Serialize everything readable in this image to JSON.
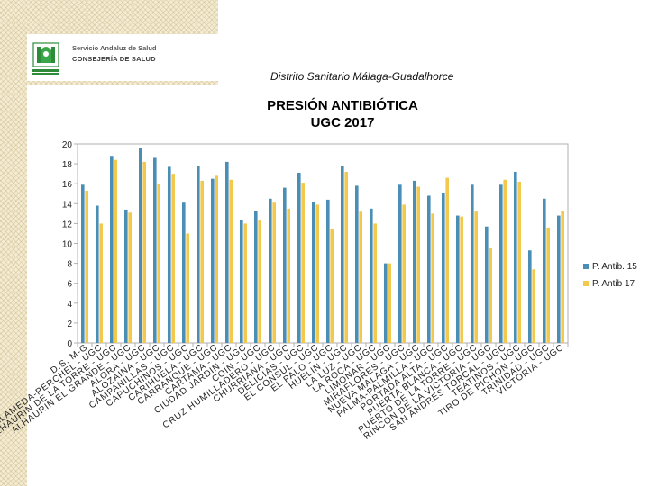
{
  "header": {
    "org_line1": "Servicio Andaluz de Salud",
    "org_line2": "CONSEJERÍA DE SALUD",
    "subtitle": "Distrito Sanitario Málaga-Guadalhorce"
  },
  "colors": {
    "series1": "#4a8db5",
    "series2": "#f2c94c",
    "axis": "#b0b0b0",
    "text": "#222222"
  },
  "chart_data": {
    "type": "bar",
    "title": "PRESIÓN ANTIBIÓTICA UGC 2017",
    "title_lines": [
      "PRESIÓN ANTIBIÓTICA",
      "UGC  2017"
    ],
    "xlabel": "",
    "ylabel": "",
    "ylim": [
      0,
      20
    ],
    "yticks": [
      0,
      2,
      4,
      6,
      8,
      10,
      12,
      14,
      16,
      18,
      20
    ],
    "grid": false,
    "legend_position": "right",
    "categories": [
      "D.S. M-G",
      "ALAMEDA-PERCHEL - UGC",
      "ALHAURIN DE LA TORRE - UGC",
      "ALHAURIN EL GRANDE - UGC",
      "ALORA - UGC",
      "ALOZAINA - UGC",
      "CAMPANILLAS - UGC",
      "CAPUCHINOS - UGC",
      "CARIHUELA - UGC",
      "CARRANQUE - UGC",
      "CARTAMA - UGC",
      "CIUDAD JARDIN - UGC",
      "COIN - UGC",
      "CRUZ HUMILLADERO - UGC",
      "CHURRIANA - UGC",
      "DELICIAS - UGC",
      "EL CONSUL - UGC",
      "EL PALO - UGC",
      "HUELIN - UGC",
      "LA LUZ - UGC",
      "LA ROCA - UGC",
      "LIMONAR - UGC",
      "MIRAFLORES - UGC",
      "NUEVA MALAGA - UGC",
      "PALMA-PALMILLA - UGC",
      "PORTADA ALTA - UGC",
      "PUERTA BLANCA - UGC",
      "PUERTO DE LA TORRE - UGC",
      "RINCON DE LA VICTORIA - UGC",
      "SAN ANDRES TORCAL - UGC",
      "TEATINOS - UGC",
      "TIRO DE PICHON - UGC",
      "TRINIDAD - UGC",
      "VICTORIA - UGC"
    ],
    "series": [
      {
        "name": "P. Antib. 15",
        "values": [
          15.9,
          13.8,
          18.8,
          13.4,
          19.6,
          18.6,
          17.7,
          14.1,
          17.8,
          16.5,
          18.2,
          12.4,
          13.3,
          14.5,
          15.6,
          17.1,
          14.2,
          14.4,
          17.8,
          15.8,
          13.5,
          8.0,
          15.9,
          16.3,
          14.8,
          15.1,
          12.8,
          15.9,
          11.7,
          15.9,
          17.2,
          9.3,
          14.5,
          12.8
        ]
      },
      {
        "name": "P. Antib 17",
        "values": [
          15.3,
          12.0,
          18.4,
          13.1,
          18.2,
          16.0,
          17.0,
          11.0,
          16.3,
          16.8,
          16.4,
          12.0,
          12.3,
          14.1,
          13.5,
          16.1,
          13.9,
          11.5,
          17.2,
          13.2,
          12.0,
          8.0,
          13.9,
          15.7,
          13.0,
          16.6,
          12.7,
          13.2,
          9.5,
          16.4,
          16.2,
          7.4,
          11.6,
          13.3
        ]
      }
    ]
  }
}
